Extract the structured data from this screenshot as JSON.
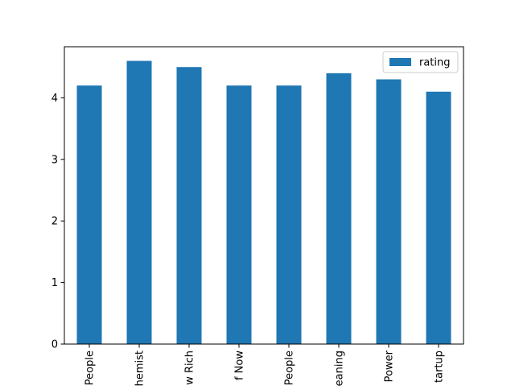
{
  "chart_data": {
    "type": "bar",
    "categories": [
      "People",
      "hemist",
      "w Rich",
      "f Now",
      "People",
      "eaning",
      "Power",
      "tartup"
    ],
    "series": [
      {
        "name": "rating",
        "values": [
          4.2,
          4.6,
          4.5,
          4.2,
          4.2,
          4.4,
          4.3,
          4.1
        ],
        "color": "#1f77b4"
      }
    ],
    "title": "",
    "xlabel": "",
    "ylabel": "",
    "ylim": [
      0,
      4.83
    ],
    "yticks": [
      0,
      1,
      2,
      3,
      4
    ],
    "grid": false,
    "legend_position": "top-right"
  }
}
